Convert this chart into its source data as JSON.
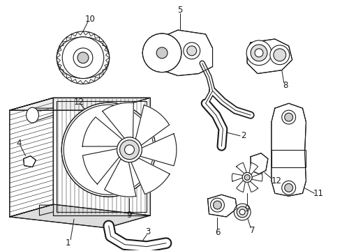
{
  "bg_color": "#ffffff",
  "line_color": "#1a1a1a",
  "lw": 0.8,
  "fig_width": 4.9,
  "fig_height": 3.6,
  "dpi": 100
}
